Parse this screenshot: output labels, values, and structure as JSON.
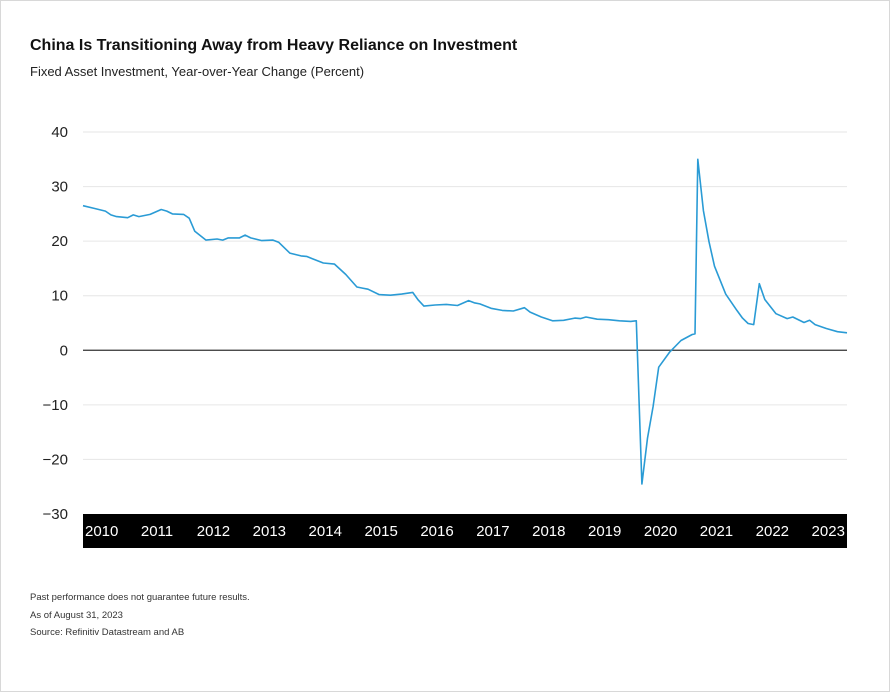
{
  "header": {
    "title": "China Is Transitioning Away from Heavy Reliance on Investment",
    "subtitle": "Fixed Asset Investment, Year-over-Year Change (Percent)"
  },
  "footnotes": {
    "disclaimer": "Past performance does not guarantee future results.",
    "as_of": "As of August 31, 2023",
    "source": "Source: Refinitiv Datastream and AB"
  },
  "colors": {
    "line": "#2a9bd5",
    "gridline": "#e6e6e6",
    "zero_line": "#333333",
    "axis_band": "#000000"
  },
  "chart_data": {
    "type": "line",
    "title": "China Is Transitioning Away from Heavy Reliance on Investment",
    "subtitle": "Fixed Asset Investment, Year-over-Year Change (Percent)",
    "xlabel": "",
    "ylabel": "",
    "ylim": [
      -30,
      40
    ],
    "yticks": [
      40,
      30,
      20,
      10,
      0,
      -10,
      -20,
      -30
    ],
    "ytick_labels": [
      "40",
      "30",
      "20",
      "10",
      "0",
      "−10",
      "−20",
      "−30"
    ],
    "xlim": [
      2010.0,
      2023.67
    ],
    "xtick_labels": [
      "2010",
      "2011",
      "2012",
      "2013",
      "2014",
      "2015",
      "2016",
      "2017",
      "2018",
      "2019",
      "2020",
      "2021",
      "2022",
      "2023"
    ],
    "grid": true,
    "legend": "none",
    "series": [
      {
        "x": [
          2010.0,
          2010.2,
          2010.4,
          2010.5,
          2010.6,
          2010.8,
          2010.9,
          2011.0,
          2011.2,
          2011.4,
          2011.5,
          2011.6,
          2011.8,
          2011.9,
          2012.0,
          2012.2,
          2012.4,
          2012.5,
          2012.6,
          2012.8,
          2012.9,
          2013.0,
          2013.2,
          2013.4,
          2013.5,
          2013.7,
          2013.9,
          2014.0,
          2014.1,
          2014.3,
          2014.5,
          2014.7,
          2014.9,
          2015.0,
          2015.1,
          2015.3,
          2015.5,
          2015.7,
          2015.9,
          2016.0,
          2016.1,
          2016.3,
          2016.5,
          2016.7,
          2016.9,
          2017.0,
          2017.1,
          2017.3,
          2017.5,
          2017.7,
          2017.9,
          2018.0,
          2018.2,
          2018.4,
          2018.6,
          2018.8,
          2018.9,
          2019.0,
          2019.2,
          2019.4,
          2019.6,
          2019.8,
          2019.9,
          2020.0,
          2020.1,
          2020.2,
          2020.3,
          2020.5,
          2020.7,
          2020.9,
          2020.95,
          2021.0,
          2021.1,
          2021.2,
          2021.3,
          2021.5,
          2021.7,
          2021.8,
          2021.9,
          2022.0,
          2022.1,
          2022.2,
          2022.4,
          2022.6,
          2022.7,
          2022.9,
          2023.0,
          2023.1,
          2023.3,
          2023.5,
          2023.67
        ],
        "values": [
          26.5,
          26.0,
          25.5,
          24.8,
          24.5,
          24.3,
          24.8,
          24.5,
          24.9,
          25.8,
          25.5,
          25.0,
          24.9,
          24.2,
          21.8,
          20.2,
          20.4,
          20.2,
          20.6,
          20.6,
          21.1,
          20.6,
          20.1,
          20.2,
          19.8,
          17.8,
          17.3,
          17.2,
          16.8,
          16.0,
          15.8,
          13.9,
          11.6,
          11.4,
          11.2,
          10.2,
          10.1,
          10.3,
          10.6,
          9.2,
          8.1,
          8.3,
          8.4,
          8.2,
          9.1,
          8.7,
          8.5,
          7.7,
          7.3,
          7.2,
          7.8,
          7.0,
          6.1,
          5.4,
          5.5,
          5.9,
          5.8,
          6.1,
          5.7,
          5.6,
          5.4,
          5.3,
          5.4,
          -24.5,
          -16.1,
          -10.3,
          -3.1,
          -0.3,
          1.8,
          2.9,
          3.0,
          35.0,
          25.6,
          19.9,
          15.4,
          10.3,
          7.3,
          5.9,
          4.9,
          4.7,
          12.2,
          9.3,
          6.7,
          5.8,
          6.1,
          5.1,
          5.5,
          4.7,
          4.0,
          3.4,
          3.2
        ]
      }
    ]
  }
}
